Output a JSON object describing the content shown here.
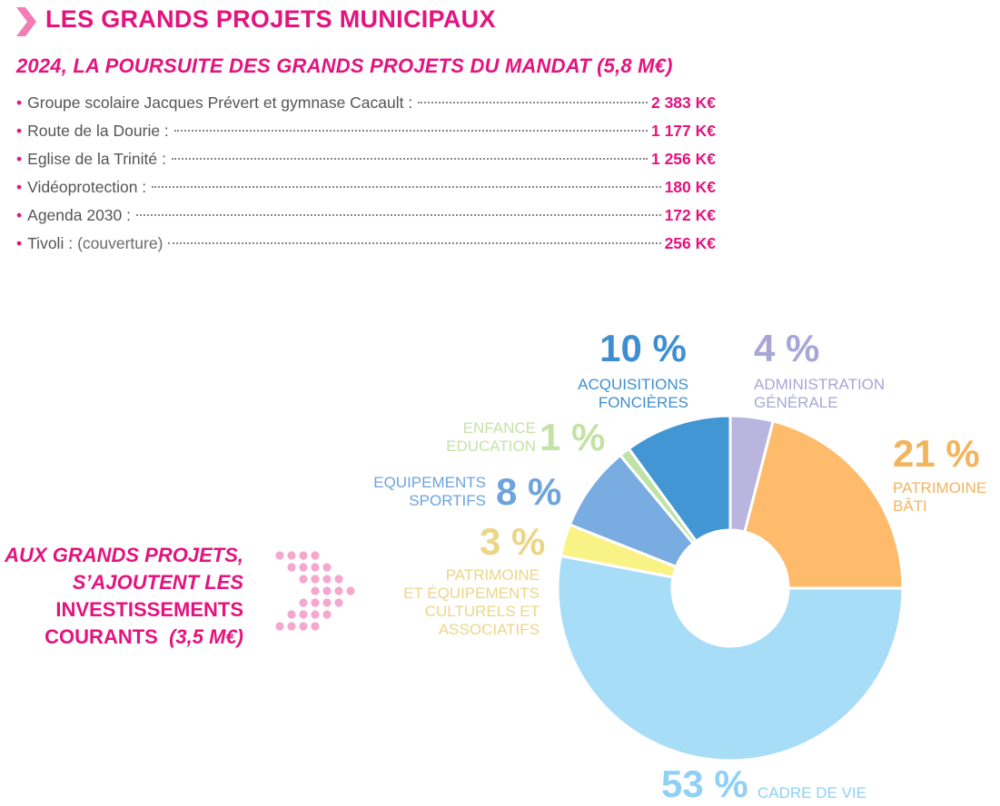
{
  "header": {
    "title": "LES GRANDS PROJETS MUNICIPAUX",
    "subtitle": "2024, LA POURSUITE DES GRANDS PROJETS DU MANDAT (5,8 M€)"
  },
  "projects": [
    {
      "name": "Groupe scolaire Jacques Prévert et gymnase Cacault :",
      "note": "",
      "amount": "2 383 K€"
    },
    {
      "name": "Route de la Dourie  :",
      "note": "",
      "amount": "1 177 K€"
    },
    {
      "name": "Eglise de la Trinité :",
      "note": "",
      "amount": "1 256 K€"
    },
    {
      "name": "Vidéoprotection :",
      "note": "",
      "amount": "180 K€"
    },
    {
      "name": "Agenda 2030 :",
      "note": "",
      "amount": "172  K€"
    },
    {
      "name": "Tivoli :",
      "note": "(couverture)",
      "amount": "256  K€"
    }
  ],
  "side_text": {
    "line1": "AUX GRANDS PROJETS,",
    "line2": "S’AJOUTENT LES",
    "line3": "INVESTISSEMENTS",
    "line4_bold": "COURANTS",
    "line4_italic": "(3,5 M€)"
  },
  "chart_data": {
    "type": "pie",
    "donut": true,
    "slices": [
      {
        "label": "ADMINISTRATION GÉNÉRALE",
        "lines": [
          "ADMINISTRATION",
          "GÉNÉRALE"
        ],
        "value": 4,
        "pct_text": "4 %",
        "color": "#B9B5DE",
        "text_color": "#A8A6D6"
      },
      {
        "label": "PATRIMOINE BÂTI",
        "lines": [
          "PATRIMOINE",
          "BÂTI"
        ],
        "value": 21,
        "pct_text": "21 %",
        "color": "#FDBB6B",
        "text_color": "#F3B45E"
      },
      {
        "label": "CADRE DE VIE",
        "lines": [
          "CADRE DE VIE"
        ],
        "value": 53,
        "pct_text": "53 %",
        "color": "#A8DDF8",
        "text_color": "#8FD0F4"
      },
      {
        "label": "PATRIMOINE ET ÉQUIPEMENTS CULTURELS ET ASSOCIATIFS",
        "lines": [
          "PATRIMOINE",
          "ET ÉQUIPEMENTS",
          "CULTURELS ET",
          "ASSOCIATIFS"
        ],
        "value": 3,
        "pct_text": "3 %",
        "color": "#F9F285",
        "text_color": "#EBD688"
      },
      {
        "label": "EQUIPEMENTS SPORTIFS",
        "lines": [
          "EQUIPEMENTS",
          "SPORTIFS"
        ],
        "value": 8,
        "pct_text": "8 %",
        "color": "#79ACE0",
        "text_color": "#6FA3DB"
      },
      {
        "label": "ENFANCE EDUCATION",
        "lines": [
          "ENFANCE",
          "EDUCATION"
        ],
        "value": 1,
        "pct_text": "1 %",
        "color": "#BFE2A6",
        "text_color": "#C4E2A4"
      },
      {
        "label": "ACQUISITIONS FONCIÈRES",
        "lines": [
          "ACQUISITIONS",
          "FONCIÈRES"
        ],
        "value": 10,
        "pct_text": "10 %",
        "color": "#4396D4",
        "text_color": "#3F8FD0"
      }
    ]
  },
  "colors": {
    "accent": "#E4137E",
    "chevron": "#F27DB4",
    "dots": "#F5A8CE",
    "text": "#555555"
  }
}
